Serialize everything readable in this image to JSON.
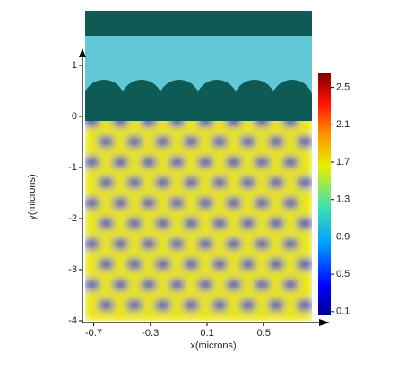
{
  "chart_data": {
    "type": "heatmap",
    "xlabel": "x(microns)",
    "ylabel": "y(microns)",
    "xlim": [
      -0.76,
      0.84
    ],
    "ylim": [
      -4,
      2.07
    ],
    "xticks": [
      -0.7,
      -0.3,
      0.1,
      0.5
    ],
    "yticks": [
      1,
      0,
      -1,
      -2,
      -3,
      -4
    ],
    "x": [
      -0.71,
      -0.61,
      -0.51,
      -0.41,
      -0.31,
      -0.21,
      -0.11,
      -0.01,
      0.09,
      0.19,
      0.29,
      0.39,
      0.49,
      0.59,
      0.69,
      0.79
    ],
    "y": [
      -0.1,
      -0.3,
      -0.5,
      -0.7,
      -0.9,
      -1.1,
      -1.3,
      -1.5,
      -1.7,
      -1.9,
      -2.1,
      -2.3,
      -2.5,
      -2.7,
      -2.9,
      -3.1,
      -3.3,
      -3.5,
      -3.7,
      -3.9
    ],
    "z": [
      [
        0.2,
        1.7,
        0.2,
        1.7,
        0.2,
        1.7,
        0.2,
        1.7,
        0.2,
        1.7,
        0.2,
        1.7,
        0.2,
        1.7,
        0.2,
        1.7
      ],
      [
        1.7,
        1.7,
        1.7,
        1.7,
        1.7,
        1.7,
        1.7,
        1.7,
        1.7,
        1.7,
        1.7,
        1.7,
        1.7,
        1.7,
        1.7,
        1.7
      ],
      [
        1.7,
        0.2,
        1.7,
        0.2,
        1.7,
        0.2,
        1.7,
        0.2,
        1.7,
        0.2,
        1.7,
        0.2,
        1.7,
        0.2,
        1.7,
        0.2
      ],
      [
        1.7,
        1.7,
        1.7,
        1.7,
        1.7,
        1.7,
        1.7,
        1.7,
        1.7,
        1.7,
        1.7,
        1.7,
        1.7,
        1.7,
        1.7,
        1.7
      ],
      [
        0.2,
        1.7,
        0.2,
        1.7,
        0.2,
        1.7,
        0.2,
        1.7,
        0.2,
        1.7,
        0.2,
        1.7,
        0.2,
        1.7,
        0.2,
        1.7
      ],
      [
        1.7,
        1.7,
        1.7,
        1.7,
        1.7,
        1.7,
        1.7,
        1.7,
        1.7,
        1.7,
        1.7,
        1.7,
        1.7,
        1.7,
        1.7,
        1.7
      ],
      [
        1.7,
        0.2,
        1.7,
        0.2,
        1.7,
        0.2,
        1.7,
        0.2,
        1.7,
        0.2,
        1.7,
        0.2,
        1.7,
        0.2,
        1.7,
        0.2
      ],
      [
        1.7,
        1.7,
        1.7,
        1.7,
        1.7,
        1.7,
        1.7,
        1.7,
        1.7,
        1.7,
        1.7,
        1.7,
        1.7,
        1.7,
        1.7,
        1.7
      ],
      [
        0.2,
        1.7,
        0.2,
        1.7,
        0.2,
        1.7,
        0.2,
        1.7,
        0.2,
        1.7,
        0.2,
        1.7,
        0.2,
        1.7,
        0.2,
        1.7
      ],
      [
        1.7,
        1.7,
        1.7,
        1.7,
        1.7,
        1.7,
        1.7,
        1.7,
        1.7,
        1.7,
        1.7,
        1.7,
        1.7,
        1.7,
        1.7,
        1.7
      ],
      [
        1.7,
        0.2,
        1.7,
        0.2,
        1.7,
        0.2,
        1.7,
        0.2,
        1.7,
        0.2,
        1.7,
        0.2,
        1.7,
        0.2,
        1.7,
        0.2
      ],
      [
        1.7,
        1.7,
        1.7,
        1.7,
        1.7,
        1.7,
        1.7,
        1.7,
        1.7,
        1.7,
        1.7,
        1.7,
        1.7,
        1.7,
        1.7,
        1.7
      ],
      [
        0.2,
        1.7,
        0.2,
        1.7,
        0.2,
        1.7,
        0.2,
        1.7,
        0.2,
        1.7,
        0.2,
        1.7,
        0.2,
        1.7,
        0.2,
        1.7
      ],
      [
        1.7,
        1.7,
        1.7,
        1.7,
        1.7,
        1.7,
        1.7,
        1.7,
        1.7,
        1.7,
        1.7,
        1.7,
        1.7,
        1.7,
        1.7,
        1.7
      ],
      [
        1.7,
        0.2,
        1.7,
        0.2,
        1.7,
        0.2,
        1.7,
        0.2,
        1.7,
        0.2,
        1.7,
        0.2,
        1.7,
        0.2,
        1.7,
        0.2
      ],
      [
        1.7,
        1.7,
        1.7,
        1.7,
        1.7,
        1.7,
        1.7,
        1.7,
        1.7,
        1.7,
        1.7,
        1.7,
        1.7,
        1.7,
        1.7,
        1.7
      ],
      [
        0.2,
        1.7,
        0.2,
        1.7,
        0.2,
        1.7,
        0.2,
        1.7,
        0.2,
        1.7,
        0.2,
        1.7,
        0.2,
        1.7,
        0.2,
        1.7
      ],
      [
        1.7,
        1.7,
        1.7,
        1.7,
        1.7,
        1.7,
        1.7,
        1.7,
        1.7,
        1.7,
        1.7,
        1.7,
        1.7,
        1.7,
        1.7,
        1.7
      ],
      [
        1.7,
        0.2,
        1.7,
        0.2,
        1.7,
        0.2,
        1.7,
        0.2,
        1.7,
        0.2,
        1.7,
        0.2,
        1.7,
        0.2,
        1.7,
        0.2
      ],
      [
        1.7,
        1.7,
        1.7,
        1.7,
        1.7,
        1.7,
        1.7,
        1.7,
        1.7,
        1.7,
        1.7,
        1.7,
        1.7,
        1.7,
        1.7,
        1.7
      ]
    ],
    "zlim": [
      0.06,
      2.65
    ],
    "zticks": [
      2.5,
      2.1,
      1.7,
      1.3,
      0.9,
      0.5,
      0.1
    ]
  }
}
